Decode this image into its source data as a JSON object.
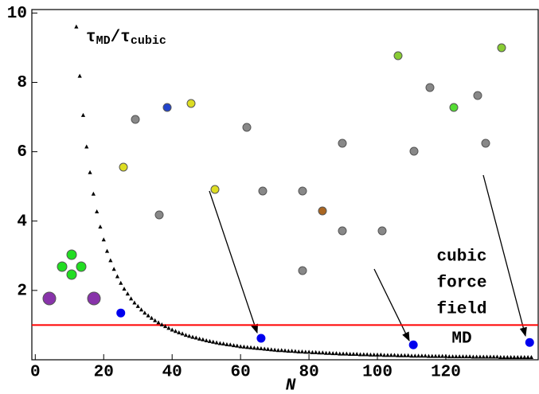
{
  "chart_data": {
    "type": "scatter",
    "xlabel": "N",
    "curve_label": {
      "numer": "τ",
      "numer_sub": "MD",
      "denom": "/τ",
      "denom_sub": "cubic"
    },
    "region_labels": {
      "above": [
        "cubic",
        "force",
        "field"
      ],
      "below": "MD"
    },
    "xlim": [
      -1,
      147
    ],
    "ylim": [
      0,
      10.1
    ],
    "xticks": [
      0,
      20,
      40,
      60,
      80,
      100,
      120
    ],
    "yticks": [
      2,
      4,
      6,
      8,
      10
    ],
    "reference_line": {
      "value": 1,
      "color": "#ff0000"
    },
    "series": [
      {
        "marker": "triangle",
        "color": "#000000",
        "x": [
          12,
          13,
          14,
          15,
          16,
          17,
          18,
          19,
          20,
          21,
          22,
          23,
          24,
          25,
          26,
          27,
          28,
          29,
          30,
          31,
          32,
          33,
          34,
          35,
          36,
          37,
          38,
          39,
          40,
          41,
          42,
          43,
          44,
          45,
          46,
          47,
          48,
          49,
          50,
          51,
          52,
          53,
          54,
          55,
          56,
          57,
          58,
          59,
          60,
          61,
          62,
          63,
          64,
          65,
          66,
          67,
          68,
          69,
          70,
          71,
          72,
          73,
          74,
          75,
          76,
          77,
          78,
          79,
          80,
          81,
          82,
          83,
          84,
          85,
          86,
          87,
          88,
          89,
          90,
          91,
          92,
          93,
          94,
          95,
          96,
          97,
          98,
          99,
          100,
          101,
          102,
          103,
          104,
          105,
          106,
          107,
          108,
          109,
          110,
          111,
          112,
          113,
          114,
          115,
          116,
          117,
          118,
          119,
          120,
          121,
          122,
          123,
          124,
          125,
          126,
          127,
          128,
          129,
          130,
          131,
          132,
          133,
          134,
          135,
          136,
          137,
          138,
          139,
          140,
          141,
          142,
          143,
          144,
          145
        ],
        "values": [
          9.6,
          8.18,
          7.05,
          6.14,
          5.4,
          4.78,
          4.27,
          3.83,
          3.46,
          3.13,
          2.86,
          2.61,
          2.4,
          2.21,
          2.04,
          1.9,
          1.76,
          1.64,
          1.54,
          1.44,
          1.35,
          1.27,
          1.2,
          1.13,
          1.07,
          1.01,
          0.96,
          0.91,
          0.86,
          0.82,
          0.78,
          0.75,
          0.71,
          0.68,
          0.65,
          0.63,
          0.6,
          0.58,
          0.55,
          0.53,
          0.51,
          0.49,
          0.47,
          0.46,
          0.44,
          0.43,
          0.41,
          0.4,
          0.38,
          0.37,
          0.36,
          0.35,
          0.34,
          0.33,
          0.32,
          0.31,
          0.3,
          0.29,
          0.28,
          0.27,
          0.27,
          0.26,
          0.25,
          0.25,
          0.24,
          0.23,
          0.23,
          0.22,
          0.22,
          0.21,
          0.21,
          0.2,
          0.2,
          0.19,
          0.19,
          0.18,
          0.18,
          0.17,
          0.17,
          0.17,
          0.16,
          0.16,
          0.16,
          0.15,
          0.15,
          0.15,
          0.14,
          0.14,
          0.14,
          0.14,
          0.13,
          0.13,
          0.13,
          0.13,
          0.12,
          0.12,
          0.12,
          0.12,
          0.11,
          0.11,
          0.11,
          0.11,
          0.11,
          0.1,
          0.1,
          0.1,
          0.1,
          0.1,
          0.1,
          0.09,
          0.09,
          0.09,
          0.09,
          0.09,
          0.09,
          0.09,
          0.08,
          0.08,
          0.08,
          0.08,
          0.08,
          0.08,
          0.08,
          0.08,
          0.07,
          0.07,
          0.07,
          0.07,
          0.07,
          0.07,
          0.07,
          0.07,
          0.07,
          0.07
        ]
      },
      {
        "marker": "circle",
        "color": "#0000ee",
        "x": [
          25,
          66,
          110.5,
          144.5
        ],
        "values": [
          1.35,
          0.62,
          0.43,
          0.5
        ]
      }
    ]
  }
}
